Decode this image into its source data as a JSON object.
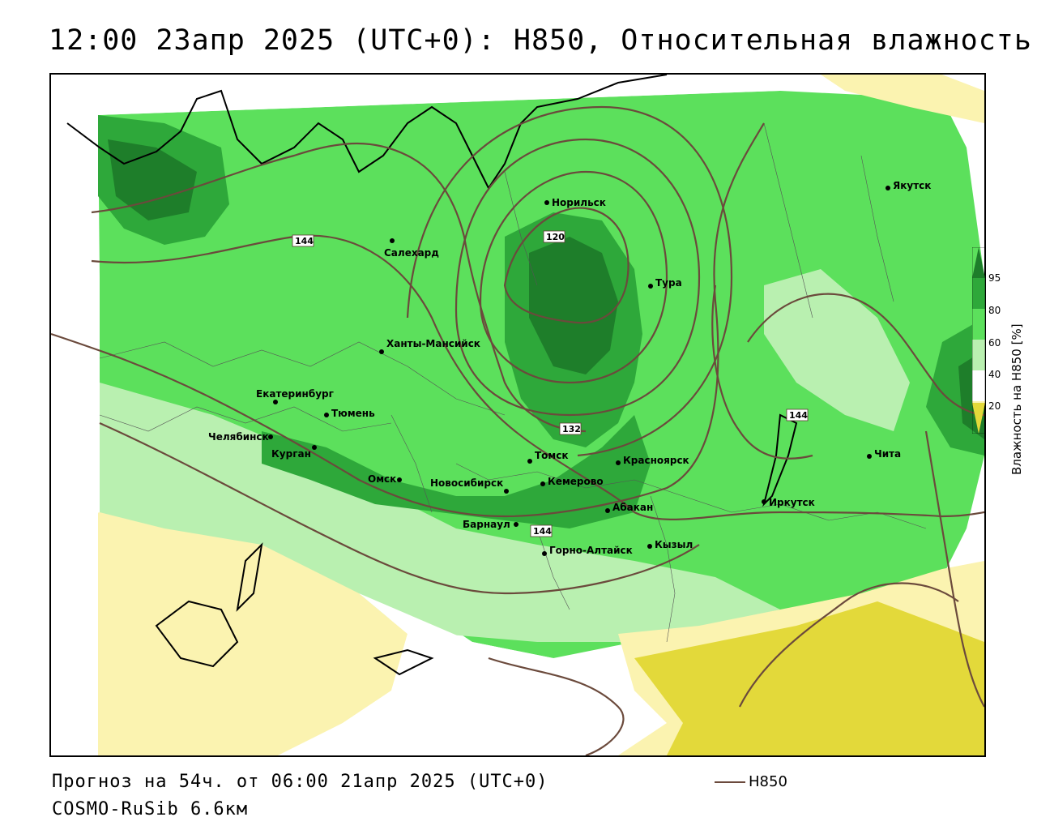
{
  "title": "12:00 23апр 2025 (UTC+0): H850, Относительная влажность",
  "footer": {
    "forecast": "Прогноз на 54ч. от 06:00 21апр 2025 (UTC+0)",
    "model": "COSMO-RuSib 6.6км"
  },
  "legend": {
    "contour_name": "H850",
    "contour_color": "#6b4a3c"
  },
  "colorbar": {
    "title": "Влажность на H850 [%]",
    "ticks": [
      "95",
      "80",
      "60",
      "40",
      "20"
    ],
    "colors": {
      "very_wet": "#1e7e2a",
      "wet": "#2ea83a",
      "moist": "#5ce05c",
      "humid": "#b9f0b0",
      "neutral": "#ffffff",
      "dryish": "#fbf3b0",
      "dry": "#e3d93a"
    }
  },
  "contour_labels": [
    "144",
    "120",
    "132",
    "144",
    "144"
  ],
  "cities": [
    {
      "name": "Норильск"
    },
    {
      "name": "Якутск"
    },
    {
      "name": "Салехард"
    },
    {
      "name": "Тура"
    },
    {
      "name": "Ханты-Мансийск"
    },
    {
      "name": "Екатеринбург"
    },
    {
      "name": "Тюмень"
    },
    {
      "name": "Челябинск"
    },
    {
      "name": "Курган"
    },
    {
      "name": "Омск"
    },
    {
      "name": "Новосибирск"
    },
    {
      "name": "Томск"
    },
    {
      "name": "Кемерово"
    },
    {
      "name": "Красноярск"
    },
    {
      "name": "Абакан"
    },
    {
      "name": "Барнаул"
    },
    {
      "name": "Горно-Алтайск"
    },
    {
      "name": "Кызыл"
    },
    {
      "name": "Иркутск"
    },
    {
      "name": "Чита"
    }
  ]
}
